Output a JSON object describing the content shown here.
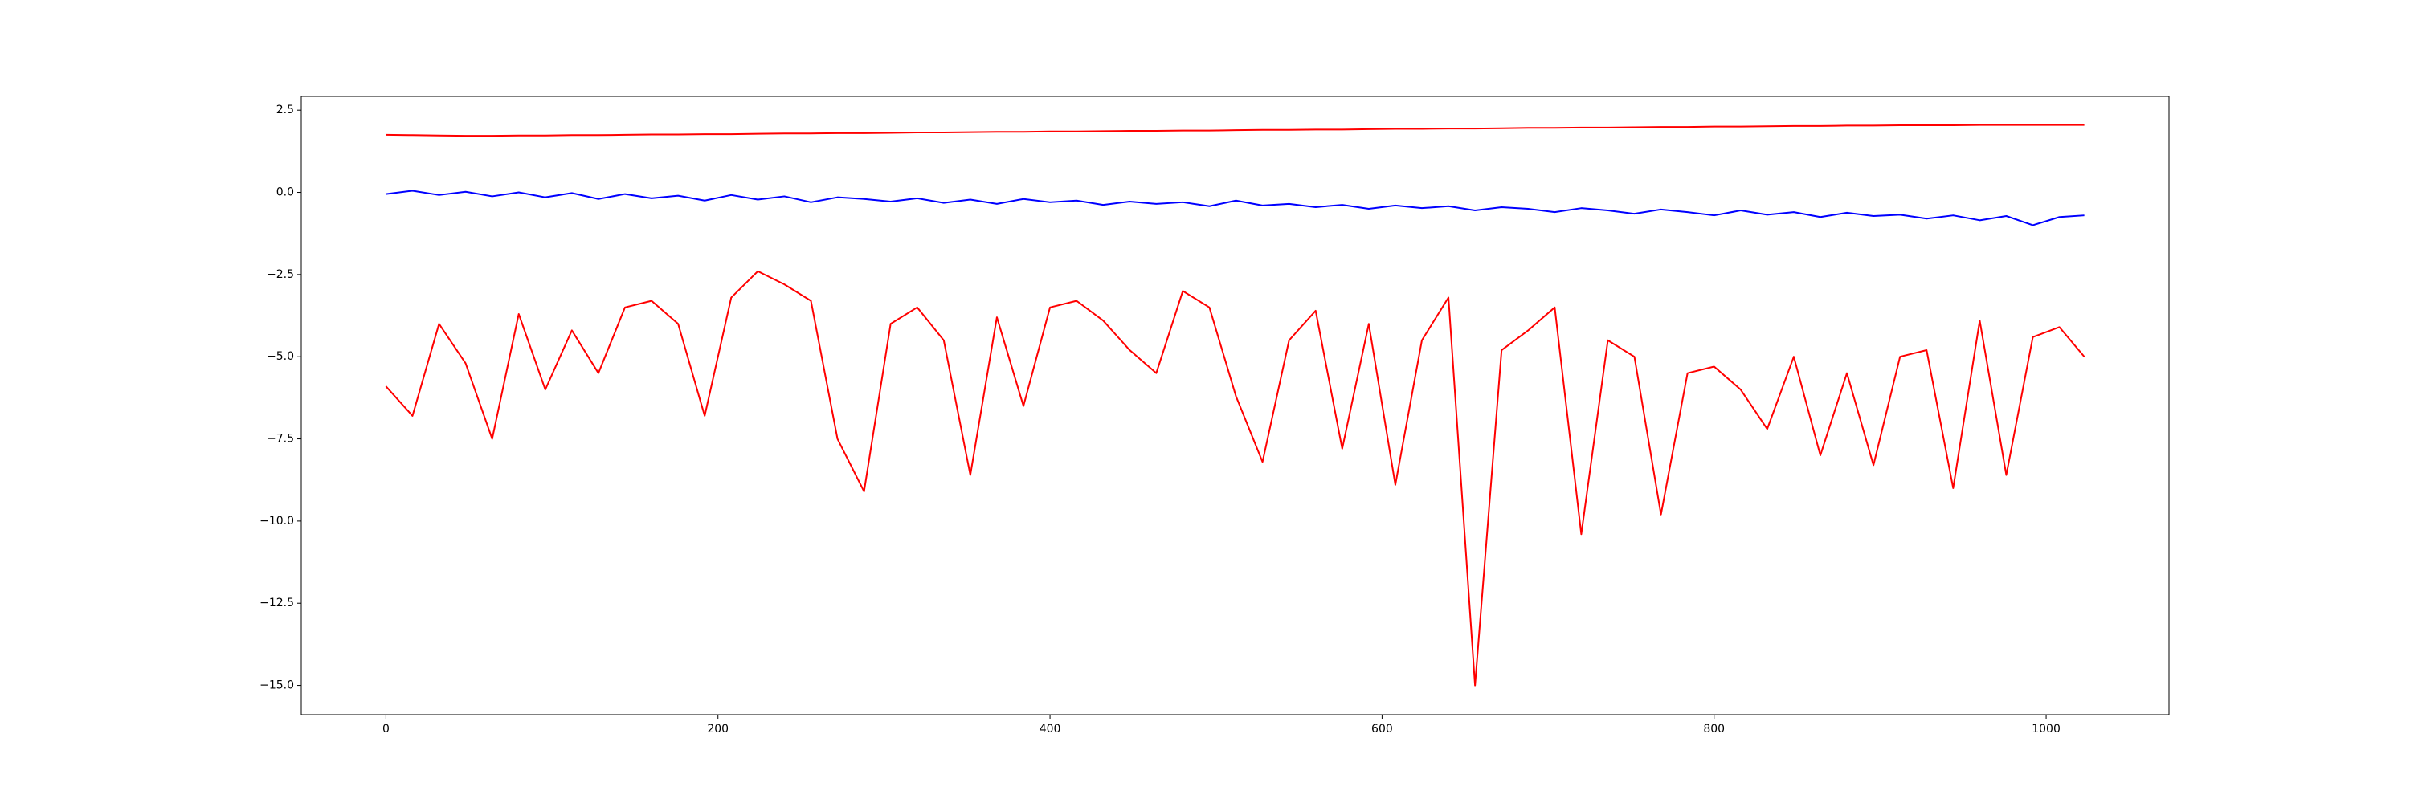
{
  "chart_data": {
    "type": "line",
    "x": [
      0,
      16,
      32,
      48,
      64,
      80,
      96,
      112,
      128,
      144,
      160,
      176,
      192,
      208,
      224,
      240,
      256,
      272,
      288,
      304,
      320,
      336,
      352,
      368,
      384,
      400,
      416,
      432,
      448,
      464,
      480,
      496,
      512,
      528,
      544,
      560,
      576,
      592,
      608,
      624,
      640,
      656,
      672,
      688,
      704,
      720,
      736,
      752,
      768,
      784,
      800,
      816,
      832,
      848,
      864,
      880,
      896,
      912,
      928,
      944,
      960,
      976,
      992,
      1008,
      1023
    ],
    "series": [
      {
        "color": "red",
        "values": [
          1.75,
          1.74,
          1.73,
          1.72,
          1.72,
          1.73,
          1.73,
          1.74,
          1.74,
          1.75,
          1.76,
          1.76,
          1.77,
          1.77,
          1.78,
          1.79,
          1.79,
          1.8,
          1.8,
          1.81,
          1.82,
          1.82,
          1.83,
          1.84,
          1.84,
          1.85,
          1.85,
          1.86,
          1.87,
          1.87,
          1.88,
          1.88,
          1.89,
          1.9,
          1.9,
          1.91,
          1.91,
          1.92,
          1.93,
          1.93,
          1.94,
          1.94,
          1.95,
          1.96,
          1.96,
          1.97,
          1.97,
          1.98,
          1.99,
          1.99,
          2.0,
          2.0,
          2.01,
          2.02,
          2.02,
          2.03,
          2.03,
          2.04,
          2.04,
          2.04,
          2.05,
          2.05,
          2.05,
          2.05,
          2.05
        ]
      },
      {
        "color": "blue",
        "values": [
          -0.05,
          0.05,
          -0.08,
          0.02,
          -0.12,
          0.0,
          -0.15,
          -0.02,
          -0.2,
          -0.05,
          -0.18,
          -0.1,
          -0.25,
          -0.08,
          -0.22,
          -0.12,
          -0.3,
          -0.15,
          -0.2,
          -0.28,
          -0.18,
          -0.32,
          -0.22,
          -0.35,
          -0.2,
          -0.3,
          -0.25,
          -0.38,
          -0.28,
          -0.35,
          -0.3,
          -0.42,
          -0.25,
          -0.4,
          -0.35,
          -0.45,
          -0.38,
          -0.5,
          -0.4,
          -0.48,
          -0.42,
          -0.55,
          -0.45,
          -0.5,
          -0.6,
          -0.48,
          -0.55,
          -0.65,
          -0.52,
          -0.6,
          -0.7,
          -0.55,
          -0.68,
          -0.6,
          -0.75,
          -0.62,
          -0.72,
          -0.68,
          -0.8,
          -0.7,
          -0.85,
          -0.72,
          -1.0,
          -0.75,
          -0.7
        ]
      },
      {
        "color": "red",
        "values": [
          -5.9,
          -6.8,
          -4.0,
          -5.2,
          -7.5,
          -3.7,
          -6.0,
          -4.2,
          -5.5,
          -3.5,
          -3.3,
          -4.0,
          -6.8,
          -3.2,
          -2.4,
          -2.8,
          -3.3,
          -7.5,
          -9.1,
          -4.0,
          -3.5,
          -4.5,
          -8.6,
          -3.8,
          -6.5,
          -3.5,
          -3.3,
          -3.9,
          -4.8,
          -5.5,
          -3.0,
          -3.5,
          -6.2,
          -8.2,
          -4.5,
          -3.6,
          -7.8,
          -4.0,
          -8.9,
          -4.5,
          -3.2,
          -15.0,
          -4.8,
          -4.2,
          -3.5,
          -10.4,
          -4.5,
          -5.0,
          -9.8,
          -5.5,
          -5.3,
          -6.0,
          -7.2,
          -5.0,
          -8.0,
          -5.5,
          -8.3,
          -5.0,
          -4.8,
          -9.0,
          -3.9,
          -8.6,
          -4.4,
          -4.1,
          -5.0
        ]
      }
    ],
    "xlim": [
      -51,
      1074
    ],
    "ylim": [
      -15.89,
      2.92
    ],
    "xticks": [
      0,
      200,
      400,
      600,
      800,
      1000
    ],
    "yticks": [
      2.5,
      {
        "value": 0,
        "label": "0.0"
      },
      {
        "value": -2.5,
        "label": "−2.5"
      },
      {
        "value": -5,
        "label": "−5.0"
      },
      {
        "value": -7.5,
        "label": "−7.5"
      },
      {
        "value": -10,
        "label": "−10.0"
      },
      {
        "value": -12.5,
        "label": "−12.5"
      },
      {
        "value": -15,
        "label": "−15.0"
      }
    ]
  }
}
